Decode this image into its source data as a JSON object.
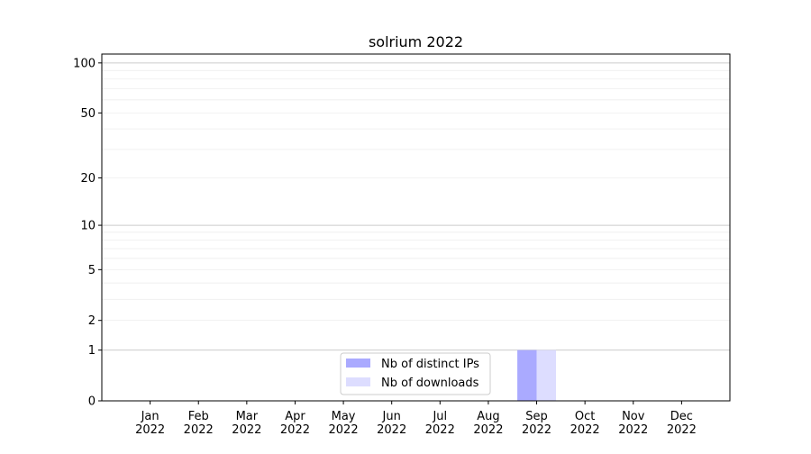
{
  "chart_data": {
    "type": "bar",
    "title": "solrium 2022",
    "xlabel": "",
    "ylabel": "",
    "yscale": "symlog (log10(1+y))",
    "ylim": [
      0,
      113
    ],
    "yticks": [
      0,
      1,
      2,
      5,
      10,
      20,
      50,
      100
    ],
    "grid": true,
    "legend_placement": "lower-center",
    "categories": [
      "Jan\n2022",
      "Feb\n2022",
      "Mar\n2022",
      "Apr\n2022",
      "May\n2022",
      "Jun\n2022",
      "Jul\n2022",
      "Aug\n2022",
      "Sep\n2022",
      "Oct\n2022",
      "Nov\n2022",
      "Dec\n2022"
    ],
    "series": [
      {
        "name": "Nb of distinct IPs",
        "color": "#aaaaff",
        "values": [
          0,
          0,
          0,
          0,
          0,
          0,
          0,
          0,
          1,
          0,
          0,
          0
        ]
      },
      {
        "name": "Nb of downloads",
        "color": "#ddddff",
        "values": [
          0,
          0,
          0,
          0,
          0,
          0,
          0,
          0,
          1,
          0,
          0,
          0
        ]
      }
    ]
  }
}
